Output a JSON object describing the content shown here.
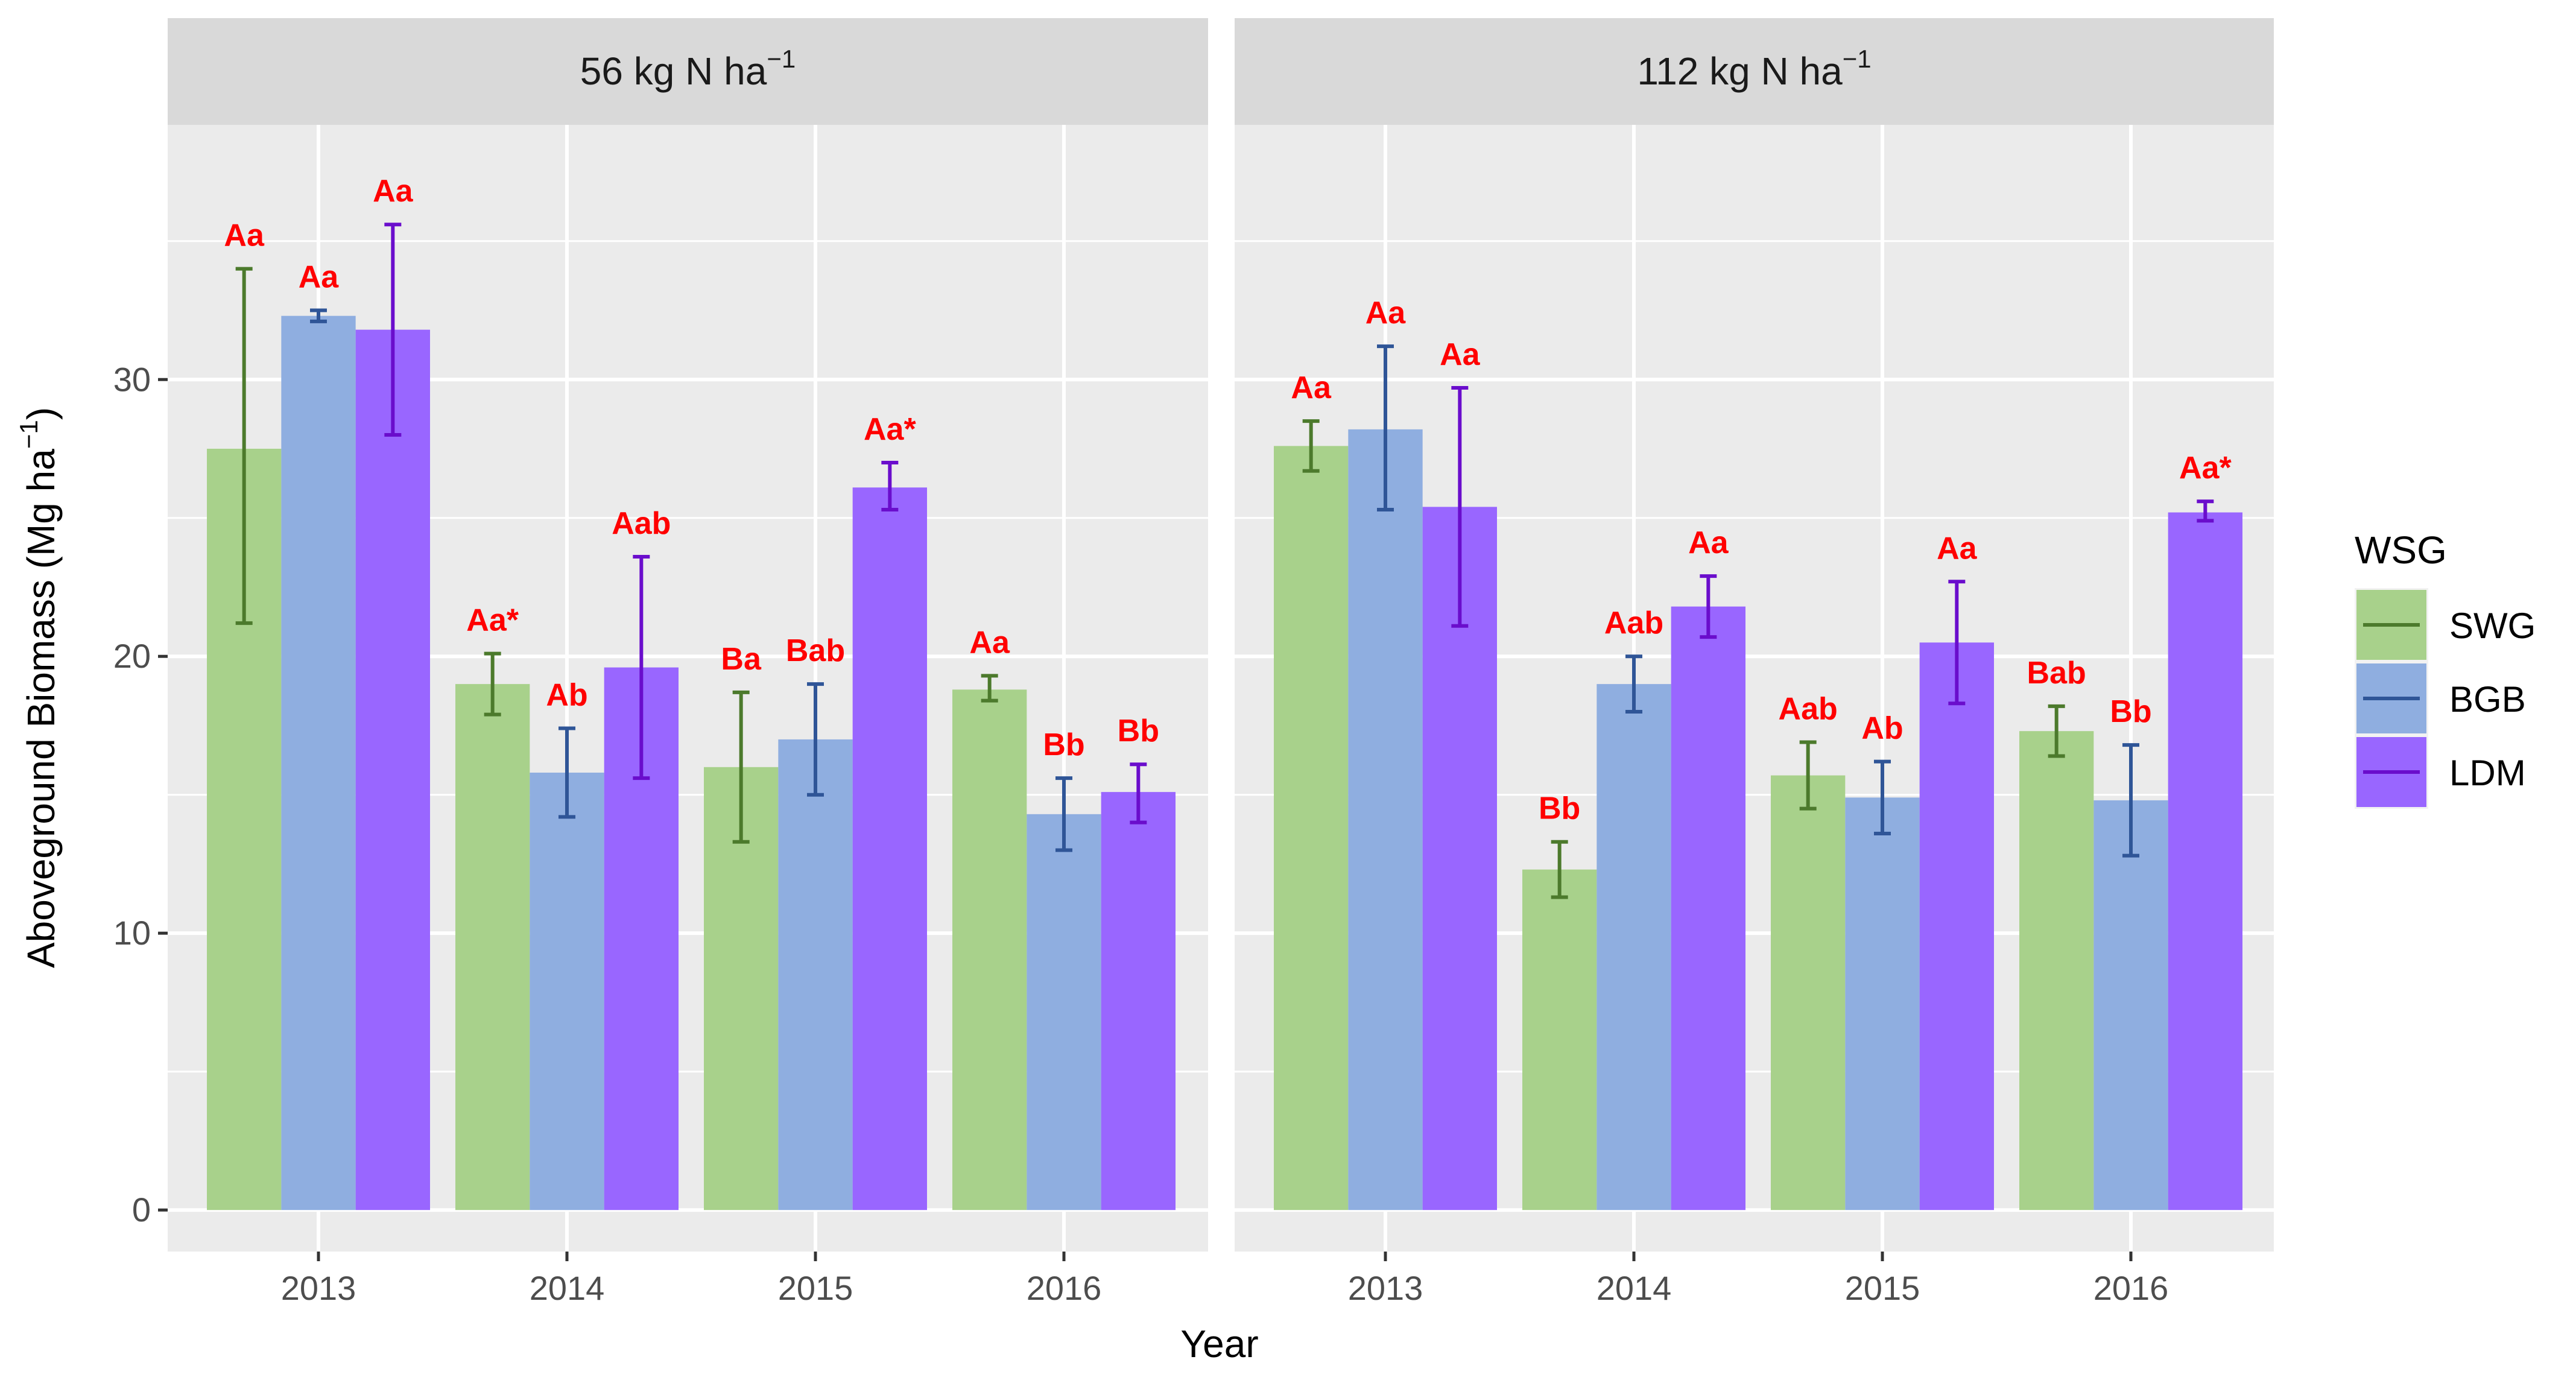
{
  "chart_data": {
    "type": "bar",
    "facets": [
      {
        "label": "56 kg N ha",
        "unit_exp": "−1",
        "categories": [
          "2013",
          "2014",
          "2015",
          "2016"
        ],
        "series": [
          {
            "name": "SWG",
            "values": [
              27.5,
              19.0,
              16.0,
              18.8
            ],
            "err_low": [
              21.2,
              17.9,
              13.3,
              18.4
            ],
            "err_high": [
              34.0,
              20.1,
              18.7,
              19.3
            ],
            "labels": [
              "Aa",
              "Aa*",
              "Ba",
              "Aa"
            ]
          },
          {
            "name": "BGB",
            "values": [
              32.3,
              15.8,
              17.0,
              14.3
            ],
            "err_low": [
              32.1,
              14.2,
              15.0,
              13.0
            ],
            "err_high": [
              32.5,
              17.4,
              19.0,
              15.6
            ],
            "labels": [
              "Aa",
              "Ab",
              "Bab",
              "Bb"
            ]
          },
          {
            "name": "LDM",
            "values": [
              31.8,
              19.6,
              26.1,
              15.1
            ],
            "err_low": [
              28.0,
              15.6,
              25.3,
              14.0
            ],
            "err_high": [
              35.6,
              23.6,
              27.0,
              16.1
            ],
            "labels": [
              "Aa",
              "Aab",
              "Aa*",
              "Bb"
            ]
          }
        ]
      },
      {
        "label": "112 kg N ha",
        "unit_exp": "−1",
        "categories": [
          "2013",
          "2014",
          "2015",
          "2016"
        ],
        "series": [
          {
            "name": "SWG",
            "values": [
              27.6,
              12.3,
              15.7,
              17.3
            ],
            "err_low": [
              26.7,
              11.3,
              14.5,
              16.4
            ],
            "err_high": [
              28.5,
              13.3,
              16.9,
              18.2
            ],
            "labels": [
              "Aa",
              "Bb",
              "Aab",
              "Bab"
            ]
          },
          {
            "name": "BGB",
            "values": [
              28.2,
              19.0,
              14.9,
              14.8
            ],
            "err_low": [
              25.3,
              18.0,
              13.6,
              12.8
            ],
            "err_high": [
              31.2,
              20.0,
              16.2,
              16.8
            ],
            "labels": [
              "Aa",
              "Aab",
              "Ab",
              "Bb"
            ]
          },
          {
            "name": "LDM",
            "values": [
              25.4,
              21.8,
              20.5,
              25.2
            ],
            "err_low": [
              21.1,
              20.7,
              18.3,
              24.9
            ],
            "err_high": [
              29.7,
              22.9,
              22.7,
              25.6
            ],
            "labels": [
              "Aa",
              "Aa",
              "Aa",
              "Aa*"
            ]
          }
        ]
      }
    ],
    "ylim": [
      -1.5,
      39.2
    ],
    "yticks": [
      0,
      10,
      20,
      30
    ],
    "xlabel": "Year",
    "ylabel": "Aboveground Biomass  (Mg ha",
    "ylabel_exp": "−1",
    "ylabel_close": ")",
    "legend": {
      "title": "WSG",
      "position": "right",
      "entries": [
        "SWG",
        "BGB",
        "LDM"
      ]
    },
    "grid": true,
    "colors": {
      "SWG": {
        "fill": "#a8d18b",
        "err": "#4c7a2c"
      },
      "BGB": {
        "fill": "#8faee0",
        "err": "#2f5597"
      },
      "LDM": {
        "fill": "#9966ff",
        "err": "#6a0dcc"
      },
      "label": "#ff0000",
      "panel": "#ebebeb",
      "strip": "#d9d9d9"
    }
  }
}
